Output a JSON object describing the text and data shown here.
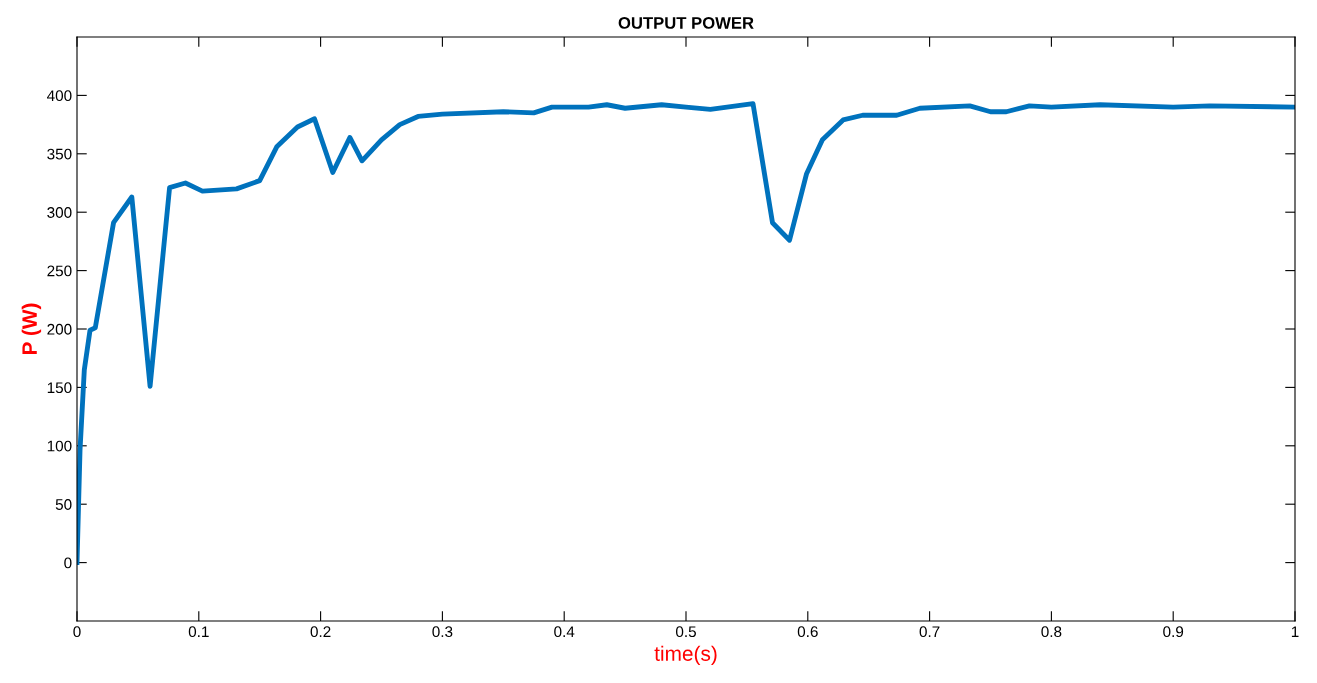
{
  "chart_data": {
    "type": "line",
    "title": "OUTPUT POWER",
    "xlabel": "time(s)",
    "ylabel": "P (W)",
    "x": [
      0,
      0.0025,
      0.006,
      0.0107,
      0.015,
      0.03,
      0.045,
      0.06,
      0.076,
      0.089,
      0.103,
      0.131,
      0.15,
      0.164,
      0.181,
      0.195,
      0.21,
      0.224,
      0.234,
      0.25,
      0.265,
      0.28,
      0.3,
      0.35,
      0.375,
      0.39,
      0.42,
      0.435,
      0.45,
      0.48,
      0.5,
      0.52,
      0.555,
      0.571,
      0.585,
      0.599,
      0.612,
      0.629,
      0.645,
      0.673,
      0.692,
      0.733,
      0.75,
      0.763,
      0.782,
      0.8,
      0.84,
      0.9,
      0.93,
      1.0
    ],
    "series": [
      {
        "color": "#0072bd",
        "values": [
          0,
          97,
          165,
          199,
          201,
          291,
          313,
          151,
          321,
          325,
          318,
          320,
          327,
          356,
          373,
          380,
          334,
          364,
          344,
          362,
          375,
          382,
          384,
          386,
          385,
          390,
          390,
          392,
          389,
          392,
          390,
          388,
          393,
          291,
          276,
          333,
          362,
          379,
          383,
          383,
          389,
          391,
          386,
          386,
          391,
          390,
          392,
          390,
          391,
          390
        ]
      }
    ],
    "xlim": [
      0,
      1
    ],
    "ylim": [
      -50,
      450
    ],
    "xticks": [
      0,
      0.1,
      0.2,
      0.3,
      0.4,
      0.5,
      0.6,
      0.7,
      0.8,
      0.9,
      1
    ],
    "yticks": [
      0,
      50,
      100,
      150,
      200,
      250,
      300,
      350,
      400
    ],
    "grid": false,
    "legend": false,
    "marker": "none",
    "line_style": "solid"
  }
}
